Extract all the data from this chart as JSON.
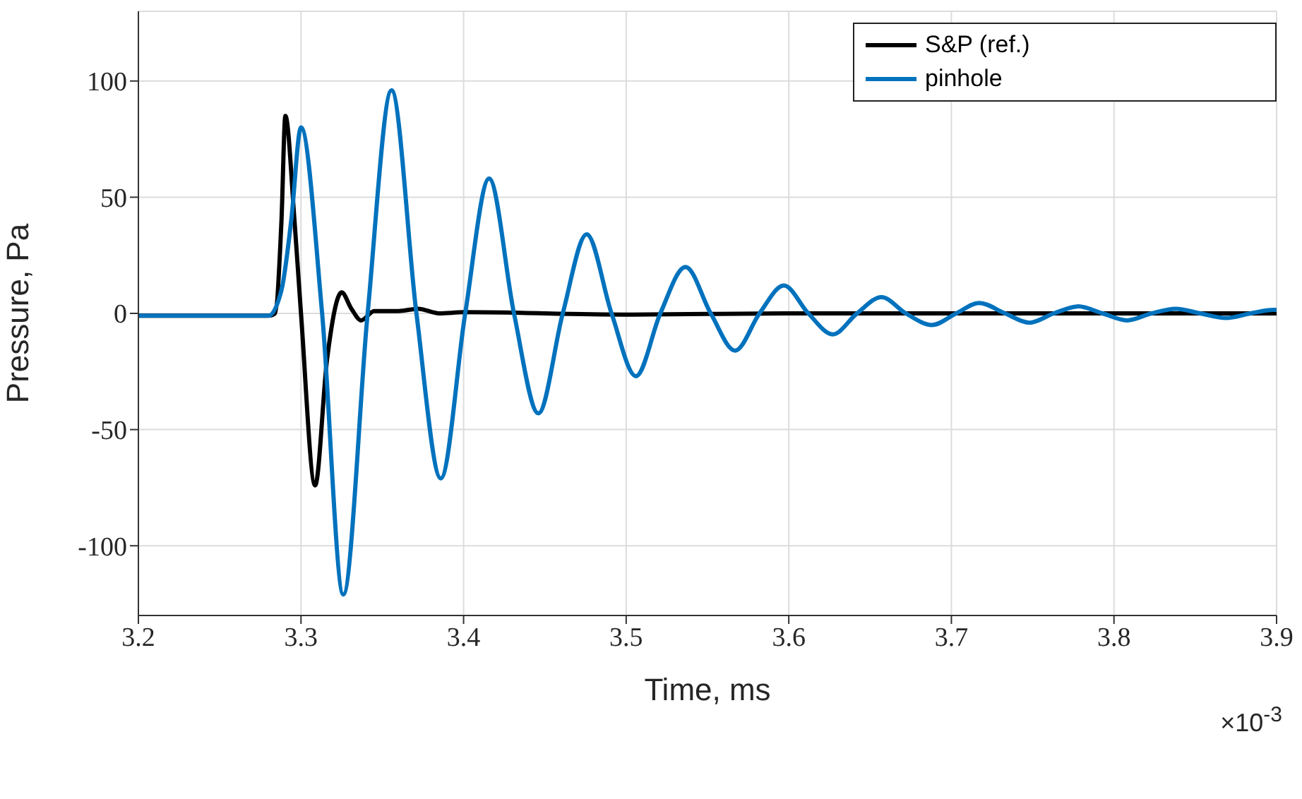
{
  "chart_data": {
    "type": "line",
    "xlabel": "Time, ms",
    "ylabel": "Pressure, Pa",
    "annotations": [
      "×10$^{-3}$"
    ],
    "xlim": [
      3.2,
      3.9
    ],
    "xticks": [
      3.2,
      3.3,
      3.4,
      3.5,
      3.6,
      3.7,
      3.8,
      3.9
    ],
    "ylim": [
      -130,
      130
    ],
    "yticks": [
      -100,
      -50,
      0,
      50,
      100
    ],
    "grid": true,
    "legend": "top right",
    "marker": "none",
    "line_style": "solid",
    "series": [
      {
        "name": "S&P (ref.)",
        "color": "#000000",
        "x": [
          3.2,
          3.28,
          3.284,
          3.288,
          3.2904,
          3.296,
          3.3,
          3.3087,
          3.316,
          3.325,
          3.331,
          3.337,
          3.345,
          3.36,
          3.372,
          3.385,
          3.4,
          3.5,
          3.6,
          3.7,
          3.8,
          3.9
        ],
        "values": [
          -1,
          -1,
          0,
          40,
          85,
          40,
          0,
          -74,
          -20,
          9,
          2,
          -3,
          1,
          1,
          2,
          0,
          0.5,
          -0.5,
          0,
          0,
          0,
          0
        ]
      },
      {
        "name": "pinhole",
        "color": "#0072bd",
        "x": [
          3.2,
          3.28,
          3.288,
          3.294,
          3.3,
          3.313,
          3.326,
          3.341,
          3.3557,
          3.371,
          3.386,
          3.401,
          3.4157,
          3.431,
          3.446,
          3.461,
          3.4757,
          3.491,
          3.506,
          3.521,
          3.5365,
          3.552,
          3.567,
          3.582,
          3.597,
          3.612,
          3.627,
          3.642,
          3.657,
          3.672,
          3.688,
          3.703,
          3.717,
          3.733,
          3.748,
          3.763,
          3.778,
          3.793,
          3.808,
          3.823,
          3.838,
          3.853,
          3.869,
          3.884,
          3.898,
          3.9
        ],
        "values": [
          -1,
          -1,
          10,
          40,
          80,
          0,
          -121,
          0,
          96,
          0,
          -71,
          0,
          58,
          0,
          -43,
          0,
          34,
          0,
          -27,
          0,
          20,
          0,
          -16,
          0,
          12,
          0,
          -9,
          0,
          7,
          0,
          -5,
          0,
          4.5,
          0,
          -4,
          0,
          3,
          0,
          -3,
          0,
          2,
          0,
          -2,
          0,
          1.5,
          1.5
        ]
      }
    ]
  }
}
